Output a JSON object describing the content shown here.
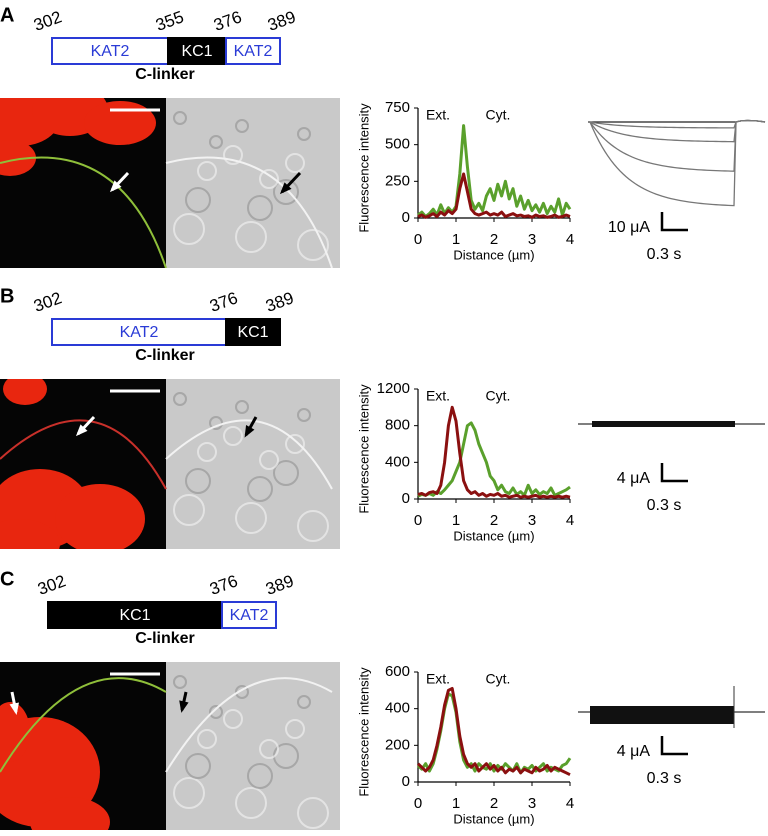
{
  "panels": [
    {
      "label": "A",
      "positions": [
        302,
        355,
        376,
        389
      ],
      "segments": [
        "KAT2",
        "KC1",
        "KAT2"
      ],
      "caption": "C-linker",
      "scale_current": "10 μA",
      "scale_time": "0.3 s"
    },
    {
      "label": "B",
      "positions": [
        302,
        376,
        389
      ],
      "segments": [
        "KAT2",
        "KC1"
      ],
      "caption": "C-linker",
      "scale_current": "4 μA",
      "scale_time": "0.3 s"
    },
    {
      "label": "C",
      "positions": [
        302,
        376,
        389
      ],
      "segments": [
        "KC1",
        "KAT2"
      ],
      "caption": "C-linker",
      "scale_current": "4 μA",
      "scale_time": "0.3 s"
    }
  ],
  "chart_data": [
    {
      "type": "line",
      "xlabel": "Distance (µm)",
      "ylabel": "Fluorescence intensity",
      "annotations": [
        "Ext.",
        "Cyt."
      ],
      "x": [
        0,
        0.1,
        0.2,
        0.3,
        0.4,
        0.5,
        0.6,
        0.7,
        0.8,
        0.9,
        1,
        1.1,
        1.2,
        1.3,
        1.4,
        1.5,
        1.6,
        1.7,
        1.8,
        1.9,
        2,
        2.1,
        2.2,
        2.3,
        2.4,
        2.5,
        2.6,
        2.7,
        2.8,
        2.9,
        3,
        3.1,
        3.2,
        3.3,
        3.4,
        3.5,
        3.6,
        3.7,
        3.8,
        3.9,
        4
      ],
      "series": [
        {
          "color": "#5aa02c",
          "values": [
            20,
            40,
            10,
            30,
            60,
            20,
            90,
            30,
            70,
            40,
            80,
            300,
            630,
            350,
            120,
            60,
            100,
            50,
            150,
            200,
            120,
            230,
            150,
            250,
            130,
            200,
            80,
            150,
            60,
            120,
            50,
            90,
            40,
            100,
            30,
            80,
            40,
            130,
            20,
            100,
            60
          ]
        },
        {
          "color": "#8b1010",
          "values": [
            10,
            20,
            5,
            15,
            30,
            10,
            40,
            20,
            50,
            30,
            60,
            200,
            300,
            180,
            60,
            30,
            20,
            30,
            40,
            20,
            30,
            20,
            40,
            10,
            20,
            30,
            15,
            20,
            10,
            15,
            5,
            20,
            10,
            15,
            5,
            10,
            20,
            5,
            10,
            20,
            10
          ]
        }
      ],
      "xlim": [
        0,
        4
      ],
      "xticks": [
        0,
        1,
        2,
        3,
        4
      ],
      "ylim": [
        0,
        750
      ],
      "yticks": [
        0,
        250,
        500,
        750
      ]
    },
    {
      "type": "line",
      "xlabel": "Distance (µm)",
      "ylabel": "Fluorescence intensity",
      "annotations": [
        "Ext.",
        "Cyt."
      ],
      "x": [
        0,
        0.1,
        0.2,
        0.3,
        0.4,
        0.5,
        0.6,
        0.7,
        0.8,
        0.9,
        1,
        1.1,
        1.2,
        1.3,
        1.4,
        1.5,
        1.6,
        1.7,
        1.8,
        1.9,
        2,
        2.1,
        2.2,
        2.3,
        2.4,
        2.5,
        2.6,
        2.7,
        2.8,
        2.9,
        3,
        3.1,
        3.2,
        3.3,
        3.4,
        3.5,
        3.6,
        3.7,
        3.8,
        3.9,
        4
      ],
      "series": [
        {
          "color": "#5aa02c",
          "values": [
            30,
            50,
            40,
            60,
            40,
            80,
            60,
            100,
            150,
            200,
            300,
            400,
            600,
            800,
            830,
            750,
            600,
            500,
            400,
            250,
            200,
            100,
            150,
            80,
            60,
            120,
            50,
            80,
            40,
            150,
            60,
            100,
            50,
            80,
            60,
            120,
            40,
            60,
            80,
            100,
            130
          ]
        },
        {
          "color": "#8b1010",
          "values": [
            50,
            60,
            40,
            70,
            80,
            60,
            150,
            400,
            800,
            1000,
            850,
            500,
            200,
            100,
            60,
            80,
            40,
            60,
            30,
            50,
            40,
            60,
            30,
            40,
            20,
            30,
            40,
            20,
            30,
            20,
            30,
            40,
            20,
            30,
            20,
            30,
            20,
            30,
            20,
            30,
            20
          ]
        }
      ],
      "xlim": [
        0,
        4
      ],
      "xticks": [
        0,
        1,
        2,
        3,
        4
      ],
      "ylim": [
        0,
        1200
      ],
      "yticks": [
        0,
        400,
        800,
        1200
      ]
    },
    {
      "type": "line",
      "xlabel": "Distance (µm)",
      "ylabel": "Fluorescence intensity",
      "annotations": [
        "Ext.",
        "Cyt."
      ],
      "x": [
        0,
        0.1,
        0.2,
        0.3,
        0.4,
        0.5,
        0.6,
        0.7,
        0.8,
        0.9,
        1,
        1.1,
        1.2,
        1.3,
        1.4,
        1.5,
        1.6,
        1.7,
        1.8,
        1.9,
        2,
        2.1,
        2.2,
        2.3,
        2.4,
        2.5,
        2.6,
        2.7,
        2.8,
        2.9,
        3,
        3.1,
        3.2,
        3.3,
        3.4,
        3.5,
        3.6,
        3.7,
        3.8,
        3.9,
        4
      ],
      "series": [
        {
          "color": "#5aa02c",
          "values": [
            90,
            70,
            100,
            60,
            100,
            180,
            280,
            400,
            480,
            470,
            380,
            220,
            120,
            80,
            100,
            60,
            100,
            80,
            70,
            100,
            60,
            90,
            70,
            100,
            80,
            60,
            100,
            50,
            80,
            70,
            90,
            60,
            80,
            100,
            60,
            80,
            70,
            60,
            90,
            100,
            130
          ]
        },
        {
          "color": "#8b1010",
          "values": [
            100,
            80,
            60,
            80,
            120,
            200,
            300,
            420,
            500,
            510,
            400,
            250,
            150,
            100,
            80,
            100,
            60,
            80,
            100,
            70,
            90,
            60,
            80,
            50,
            70,
            60,
            80,
            50,
            70,
            60,
            50,
            80,
            60,
            70,
            90,
            60,
            80,
            70,
            60,
            50,
            40
          ]
        }
      ],
      "xlim": [
        0,
        4
      ],
      "xticks": [
        0,
        1,
        2,
        3,
        4
      ],
      "ylim": [
        0,
        600
      ],
      "yticks": [
        0,
        200,
        400,
        600
      ]
    }
  ]
}
